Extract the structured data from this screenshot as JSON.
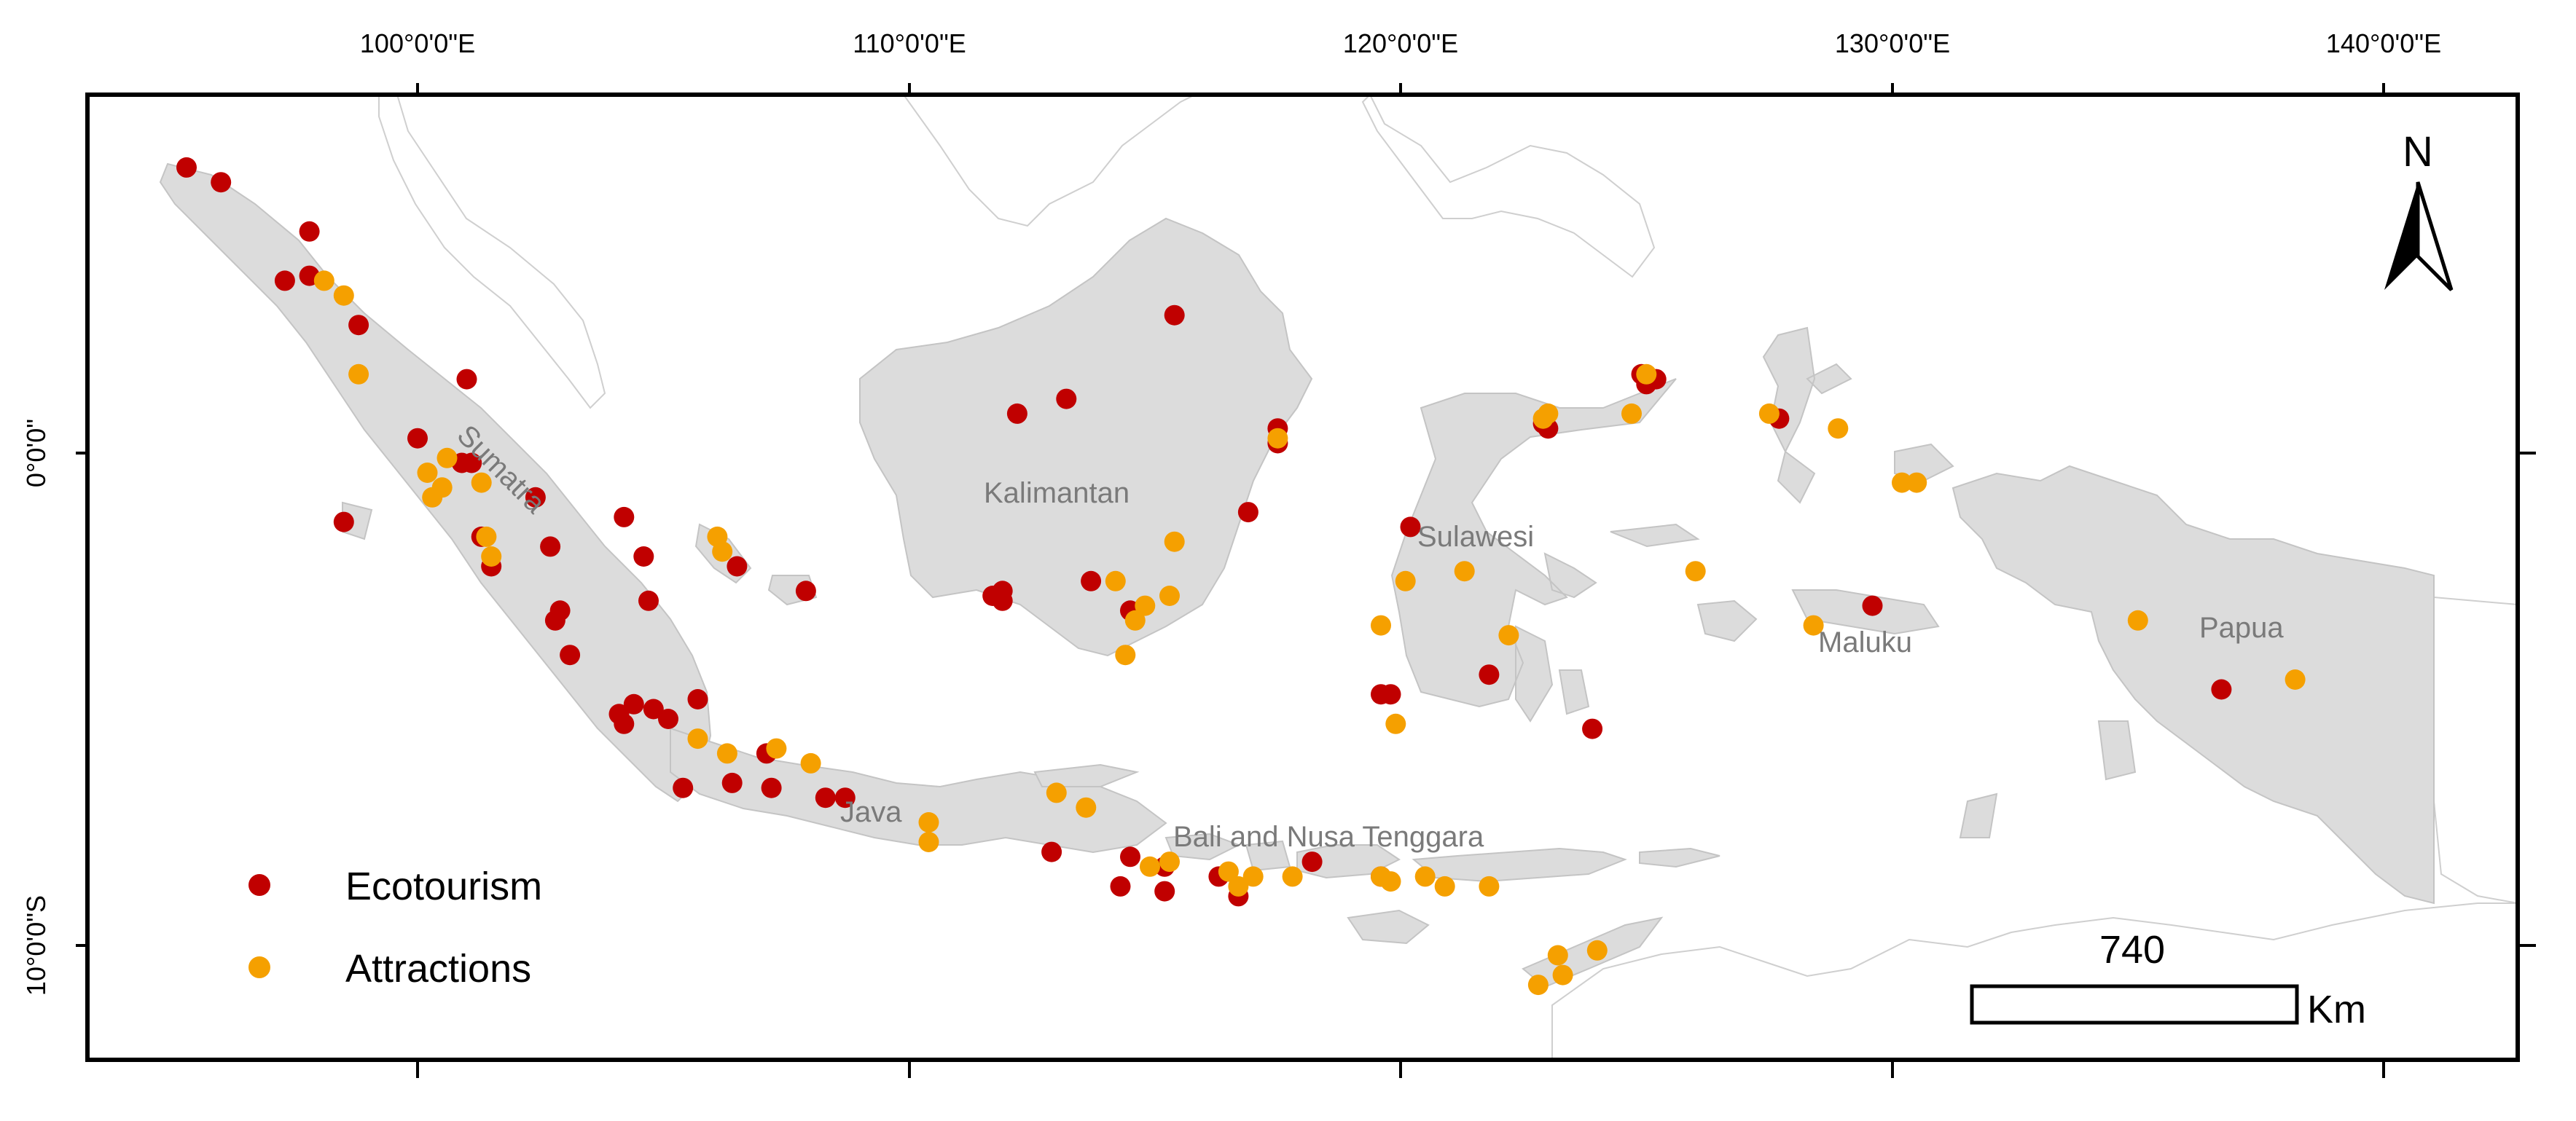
{
  "map": {
    "axes": {
      "top_ticks": [
        "100°0'0\"E",
        "110°0'0\"E",
        "120°0'0\"E",
        "130°0'0\"E",
        "140°0'0\"E"
      ],
      "left_ticks": [
        "0°0'0\"",
        "10°0'0\"S"
      ]
    },
    "regions": [
      "Sumatra",
      "Kalimantan",
      "Sulawesi",
      "Java",
      "Bali and Nusa Tenggara",
      "Maluku",
      "Papua"
    ],
    "legend": {
      "ecotourism": {
        "label": "Ecotourism",
        "color": "#c00000"
      },
      "attractions": {
        "label": "Attractions",
        "color": "#f5a000"
      }
    },
    "scale_bar": {
      "value": "740",
      "unit": "Km"
    },
    "north_arrow": {
      "label": "N",
      "icon": "north-arrow-icon"
    },
    "ecotourism_points": [
      [
        95.3,
        5.8
      ],
      [
        96.0,
        5.5
      ],
      [
        97.3,
        3.5
      ],
      [
        97.8,
        4.5
      ],
      [
        97.8,
        3.6
      ],
      [
        98.8,
        2.6
      ],
      [
        101.0,
        1.5
      ],
      [
        100.0,
        0.3
      ],
      [
        100.9,
        -0.2
      ],
      [
        101.1,
        -0.2
      ],
      [
        102.4,
        -0.9
      ],
      [
        101.3,
        -1.7
      ],
      [
        101.5,
        -2.3
      ],
      [
        102.7,
        -1.9
      ],
      [
        102.9,
        -3.2
      ],
      [
        102.8,
        -3.4
      ],
      [
        103.1,
        -4.1
      ],
      [
        104.2,
        -1.3
      ],
      [
        104.6,
        -2.1
      ],
      [
        104.7,
        -3.0
      ],
      [
        104.1,
        -5.3
      ],
      [
        104.2,
        -5.5
      ],
      [
        104.4,
        -5.1
      ],
      [
        104.8,
        -5.2
      ],
      [
        105.1,
        -5.4
      ],
      [
        105.7,
        -5.0
      ],
      [
        105.4,
        -6.8
      ],
      [
        106.5,
        -2.3
      ],
      [
        106.4,
        -6.7
      ],
      [
        107.1,
        -6.1
      ],
      [
        107.2,
        -6.8
      ],
      [
        107.9,
        -2.8
      ],
      [
        108.3,
        -7.0
      ],
      [
        108.7,
        -7.0
      ],
      [
        98.5,
        -1.4
      ],
      [
        111.7,
        -2.9
      ],
      [
        111.9,
        -2.8
      ],
      [
        111.9,
        -3.0
      ],
      [
        112.2,
        0.8
      ],
      [
        113.2,
        1.1
      ],
      [
        113.7,
        -2.6
      ],
      [
        114.5,
        -3.2
      ],
      [
        115.4,
        2.8
      ],
      [
        116.9,
        -1.2
      ],
      [
        117.5,
        0.5
      ],
      [
        117.5,
        0.2
      ],
      [
        112.9,
        -8.1
      ],
      [
        114.3,
        -8.8
      ],
      [
        114.5,
        -8.2
      ],
      [
        115.2,
        -8.4
      ],
      [
        115.2,
        -8.9
      ],
      [
        116.3,
        -8.6
      ],
      [
        116.7,
        -9.0
      ],
      [
        118.2,
        -8.3
      ],
      [
        119.6,
        -8.6
      ],
      [
        120.2,
        -1.5
      ],
      [
        121.8,
        -4.5
      ],
      [
        119.6,
        -4.9
      ],
      [
        119.8,
        -4.9
      ],
      [
        123.9,
        -5.6
      ],
      [
        122.9,
        0.6
      ],
      [
        123.0,
        0.5
      ],
      [
        124.9,
        1.6
      ],
      [
        125.0,
        1.4
      ],
      [
        125.2,
        1.5
      ],
      [
        127.7,
        0.7
      ],
      [
        129.6,
        -3.1
      ],
      [
        136.7,
        -4.8
      ]
    ],
    "attractions_points": [
      [
        98.1,
        3.5
      ],
      [
        98.5,
        3.2
      ],
      [
        98.8,
        1.6
      ],
      [
        100.2,
        -0.4
      ],
      [
        100.5,
        -0.7
      ],
      [
        100.6,
        -0.1
      ],
      [
        100.3,
        -0.9
      ],
      [
        101.3,
        -0.6
      ],
      [
        101.4,
        -1.7
      ],
      [
        101.5,
        -2.1
      ],
      [
        106.1,
        -1.7
      ],
      [
        106.2,
        -2.0
      ],
      [
        105.7,
        -5.8
      ],
      [
        106.3,
        -6.1
      ],
      [
        107.3,
        -6.0
      ],
      [
        108.0,
        -6.3
      ],
      [
        110.4,
        -7.5
      ],
      [
        110.4,
        -7.9
      ],
      [
        113.0,
        -6.9
      ],
      [
        113.6,
        -7.2
      ],
      [
        114.2,
        -2.6
      ],
      [
        114.6,
        -3.4
      ],
      [
        114.8,
        -3.1
      ],
      [
        114.4,
        -4.1
      ],
      [
        115.3,
        -2.9
      ],
      [
        115.4,
        -1.8
      ],
      [
        117.5,
        0.3
      ],
      [
        114.9,
        -8.4
      ],
      [
        115.3,
        -8.3
      ],
      [
        116.5,
        -8.5
      ],
      [
        116.7,
        -8.8
      ],
      [
        117.0,
        -8.6
      ],
      [
        117.8,
        -8.6
      ],
      [
        119.6,
        -8.6
      ],
      [
        119.8,
        -8.7
      ],
      [
        120.5,
        -8.6
      ],
      [
        120.9,
        -8.8
      ],
      [
        121.8,
        -8.8
      ],
      [
        119.6,
        -3.5
      ],
      [
        119.9,
        -5.5
      ],
      [
        120.1,
        -2.6
      ],
      [
        121.3,
        -2.4
      ],
      [
        122.2,
        -3.7
      ],
      [
        122.8,
        -10.8
      ],
      [
        123.2,
        -10.2
      ],
      [
        123.3,
        -10.6
      ],
      [
        124.0,
        -10.1
      ],
      [
        122.9,
        0.7
      ],
      [
        123.0,
        0.8
      ],
      [
        124.7,
        0.8
      ],
      [
        125.0,
        1.6
      ],
      [
        126.0,
        -2.4
      ],
      [
        127.5,
        0.8
      ],
      [
        128.9,
        0.5
      ],
      [
        130.2,
        -0.6
      ],
      [
        130.5,
        -0.6
      ],
      [
        128.4,
        -3.5
      ],
      [
        135.0,
        -3.4
      ],
      [
        138.2,
        -4.6
      ]
    ]
  }
}
